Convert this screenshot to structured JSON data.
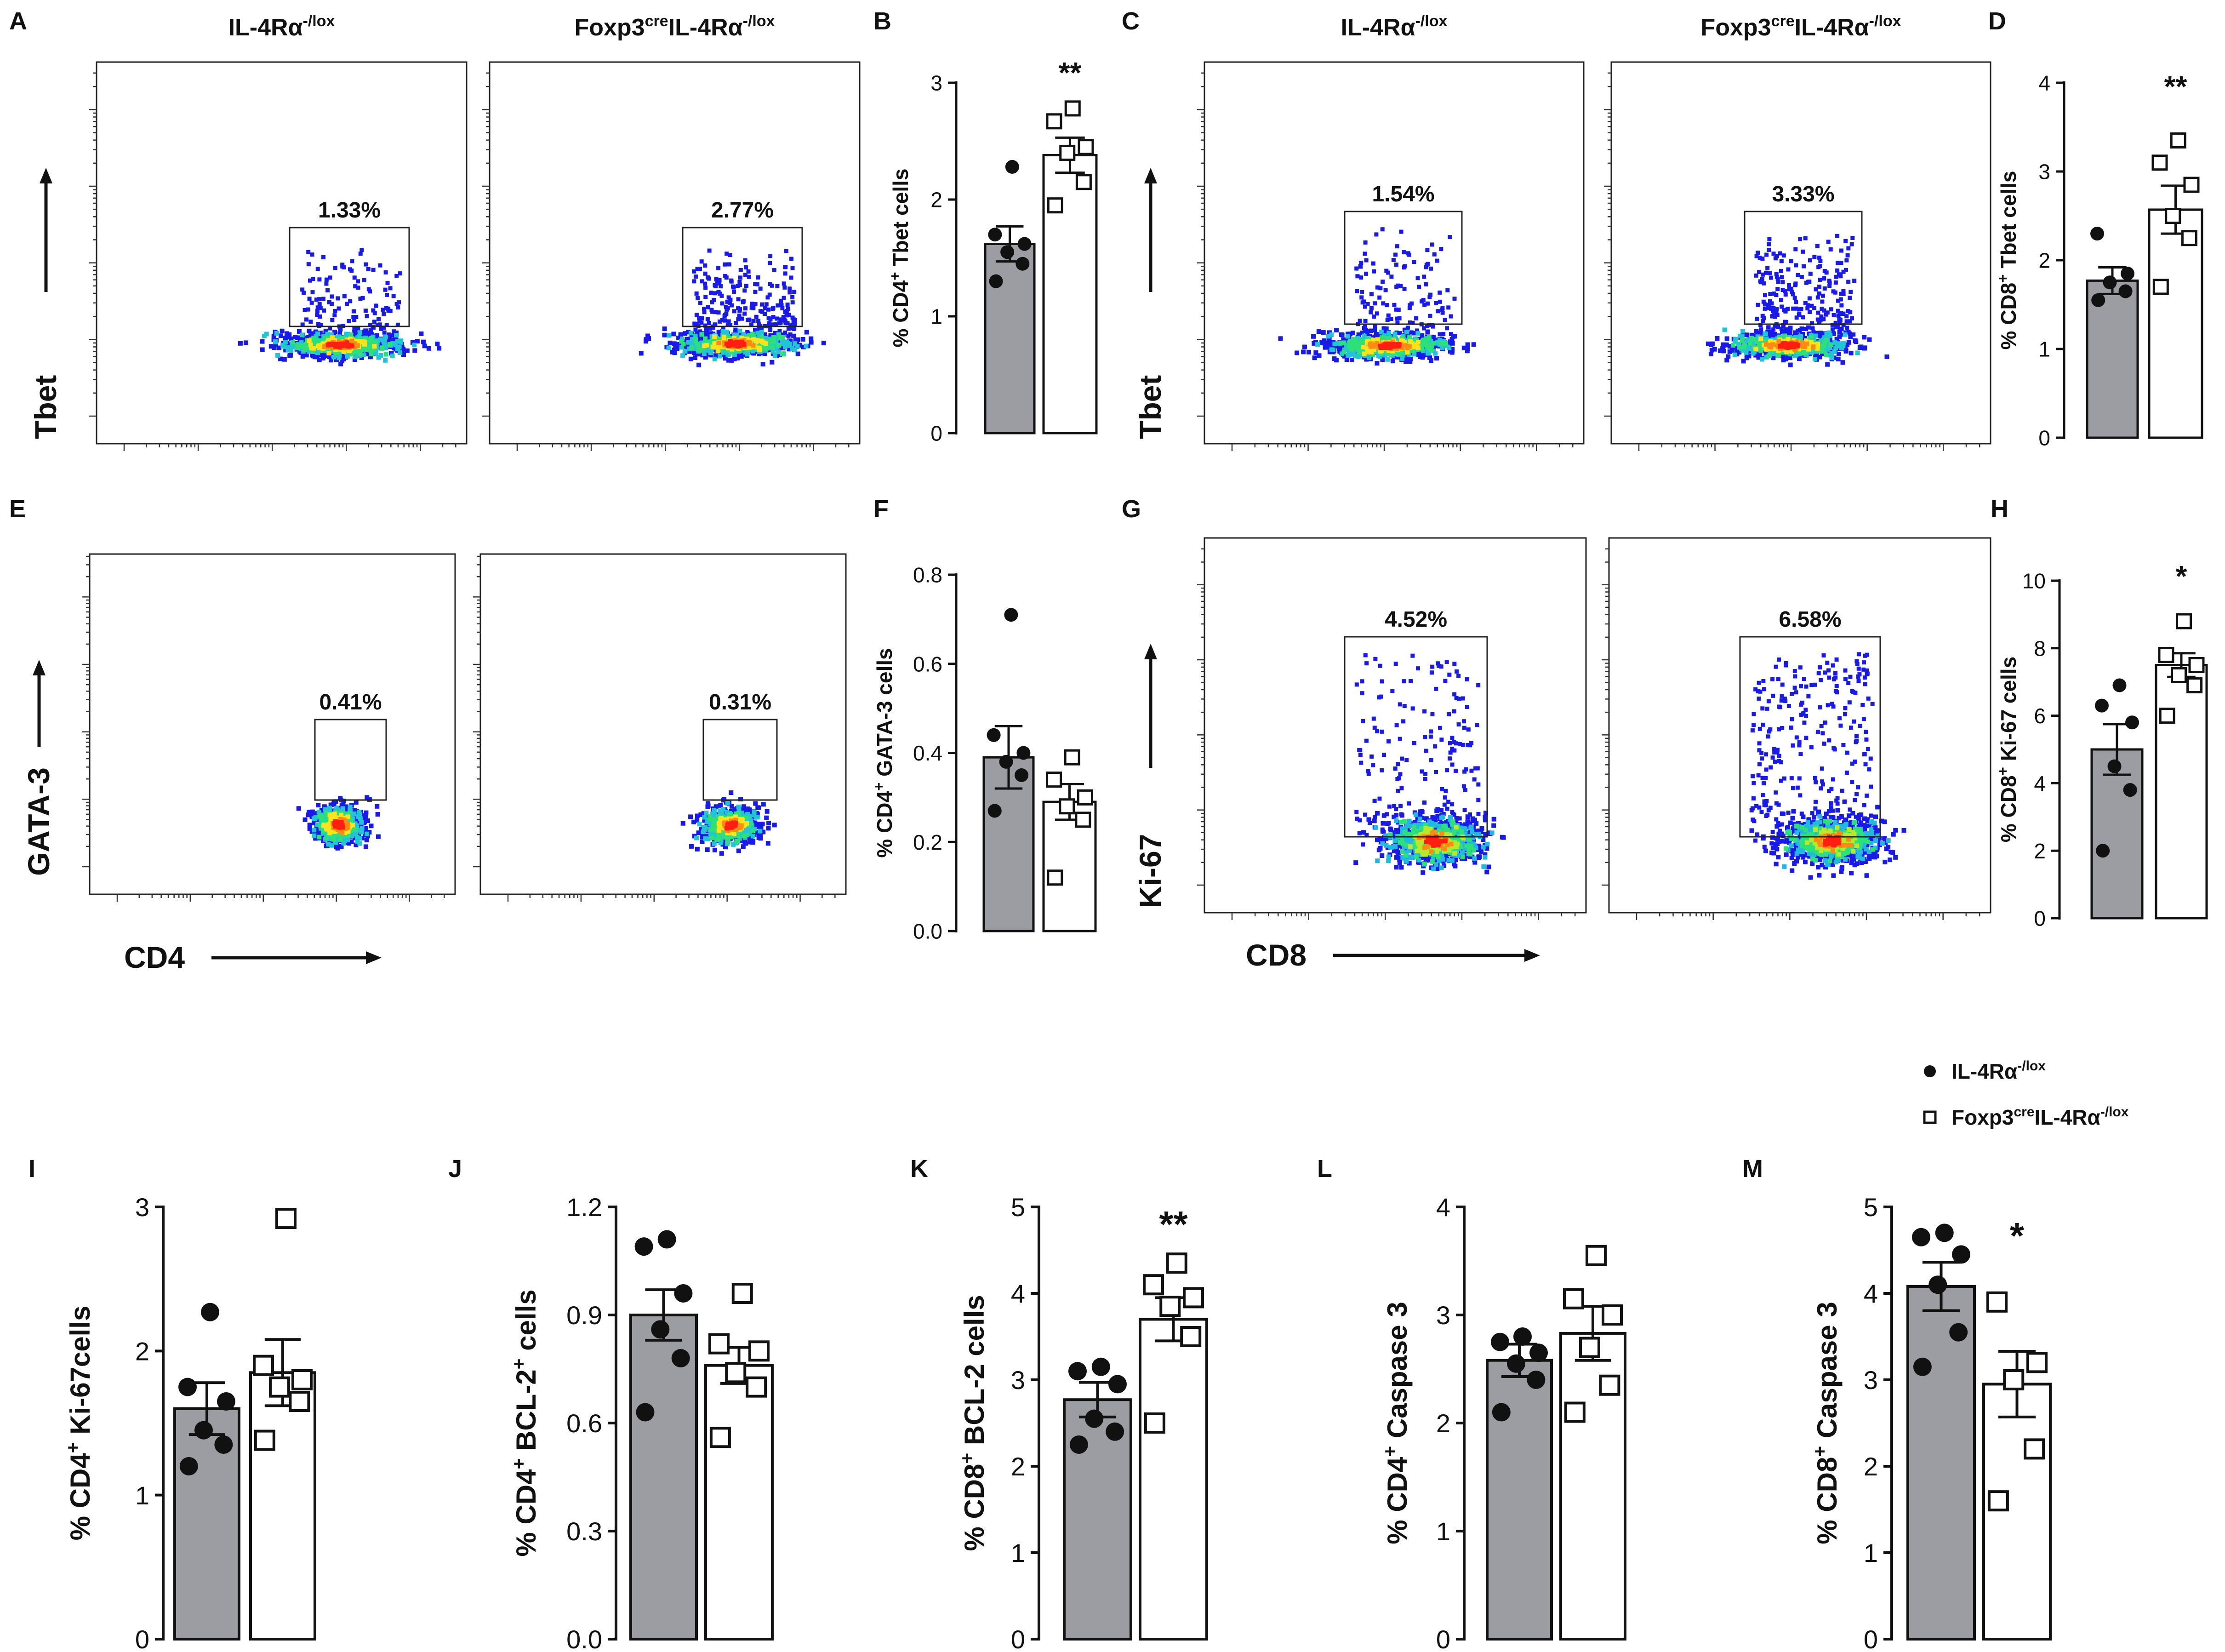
{
  "legend": {
    "wt_label": "IL-4Rα",
    "wt_sup": "-/lox",
    "ko_label_pre": "Foxp3",
    "ko_cre": "cre",
    "ko_label_post": "IL-4Rα",
    "ko_sup": "-/lox"
  },
  "flow_panels": [
    {
      "letter": "A",
      "y_axis": "Tbet",
      "x_axis": "",
      "titles": [
        {
          "pre": "",
          "sup1": "",
          "mid": "IL-4Rα",
          "sup2": "-/lox"
        },
        {
          "pre": "Foxp3",
          "sup1": "cre",
          "mid": "IL-4Rα",
          "sup2": "-/lox"
        }
      ],
      "gates": [
        "1.33%",
        "2.77%"
      ]
    },
    {
      "letter": "C",
      "y_axis": "Tbet",
      "x_axis": "",
      "titles": [
        {
          "pre": "",
          "sup1": "",
          "mid": "IL-4Rα",
          "sup2": "-/lox"
        },
        {
          "pre": "Foxp3",
          "sup1": "cre",
          "mid": "IL-4Rα",
          "sup2": "-/lox"
        }
      ],
      "gates": [
        "1.54%",
        "3.33%"
      ]
    },
    {
      "letter": "E",
      "y_axis": "GATA-3",
      "x_axis": "CD4",
      "titles": [],
      "gates": [
        "0.41%",
        "0.31%"
      ]
    },
    {
      "letter": "G",
      "y_axis": "Ki-67",
      "x_axis": "CD8",
      "titles": [],
      "gates": [
        "4.52%",
        "6.58%"
      ]
    }
  ],
  "chart_data": [
    {
      "panel": "B",
      "type": "bar",
      "ylabel_parts": [
        "% CD4",
        "+",
        " Tbet cells"
      ],
      "yticks": [
        "0",
        "1",
        "2",
        "3"
      ],
      "ylim": [
        0,
        3
      ],
      "significance": "**",
      "series": [
        {
          "name": "IL-4Rα-/lox",
          "mean": 1.62,
          "sem": 0.15,
          "points": [
            1.3,
            1.45,
            1.55,
            1.62,
            1.7,
            2.28
          ]
        },
        {
          "name": "Foxp3creIL-4Rα-/lox",
          "mean": 2.38,
          "sem": 0.15,
          "points": [
            1.95,
            2.15,
            2.4,
            2.45,
            2.67,
            2.78
          ]
        }
      ]
    },
    {
      "panel": "D",
      "type": "bar",
      "ylabel_parts": [
        "% CD8",
        "+",
        " Tbet cells"
      ],
      "yticks": [
        "0",
        "1",
        "2",
        "3",
        "4"
      ],
      "ylim": [
        0,
        4
      ],
      "significance": "**",
      "series": [
        {
          "name": "IL-4Rα-/lox",
          "mean": 1.77,
          "sem": 0.15,
          "points": [
            1.55,
            1.65,
            1.75,
            1.85,
            2.3
          ]
        },
        {
          "name": "Foxp3creIL-4Rα-/lox",
          "mean": 2.57,
          "sem": 0.27,
          "points": [
            1.7,
            2.25,
            2.5,
            2.85,
            3.1,
            3.35
          ]
        }
      ]
    },
    {
      "panel": "F",
      "type": "bar",
      "ylabel_parts": [
        "% CD4",
        "+",
        " GATA-3 cells"
      ],
      "yticks": [
        "0.0",
        "0.2",
        "0.4",
        "0.6",
        "0.8"
      ],
      "ylim": [
        0,
        0.8
      ],
      "significance": "",
      "series": [
        {
          "name": "IL-4Rα-/lox",
          "mean": 0.39,
          "sem": 0.07,
          "points": [
            0.27,
            0.35,
            0.38,
            0.4,
            0.44,
            0.71
          ]
        },
        {
          "name": "Foxp3creIL-4Rα-/lox",
          "mean": 0.29,
          "sem": 0.04,
          "points": [
            0.12,
            0.25,
            0.28,
            0.3,
            0.34,
            0.39
          ]
        }
      ]
    },
    {
      "panel": "H",
      "type": "bar",
      "ylabel_parts": [
        "% CD8",
        "+",
        " Ki-67 cells"
      ],
      "yticks": [
        "0",
        "2",
        "4",
        "6",
        "8",
        "10"
      ],
      "ylim": [
        0,
        10
      ],
      "significance": "*",
      "series": [
        {
          "name": "IL-4Rα-/lox",
          "mean": 5.0,
          "sem": 0.75,
          "points": [
            2.0,
            3.8,
            4.5,
            5.8,
            6.3,
            6.9
          ]
        },
        {
          "name": "Foxp3creIL-4Rα-/lox",
          "mean": 7.5,
          "sem": 0.35,
          "points": [
            6.0,
            6.9,
            7.2,
            7.5,
            7.8,
            8.8
          ]
        }
      ]
    },
    {
      "panel": "I",
      "type": "bar",
      "ylabel_parts": [
        "% CD4",
        "+",
        " Ki-67cells"
      ],
      "yticks": [
        "0",
        "1",
        "2",
        "3"
      ],
      "ylim": [
        0,
        3
      ],
      "significance": "",
      "series": [
        {
          "name": "IL-4Rα-/lox",
          "mean": 1.6,
          "sem": 0.18,
          "points": [
            1.2,
            1.35,
            1.45,
            1.65,
            1.75,
            2.27
          ]
        },
        {
          "name": "Foxp3creIL-4Rα-/lox",
          "mean": 1.85,
          "sem": 0.23,
          "points": [
            1.38,
            1.65,
            1.75,
            1.8,
            1.9,
            2.92
          ]
        }
      ]
    },
    {
      "panel": "J",
      "type": "bar",
      "ylabel_parts": [
        "% CD4",
        "+",
        " BCL-2",
        "+",
        " cells"
      ],
      "yticks": [
        "0.0",
        "0.3",
        "0.6",
        "0.9",
        "1.2"
      ],
      "ylim": [
        0,
        1.2
      ],
      "significance": "",
      "series": [
        {
          "name": "IL-4Rα-/lox",
          "mean": 0.9,
          "sem": 0.07,
          "points": [
            0.63,
            0.78,
            0.86,
            0.96,
            1.09,
            1.11
          ]
        },
        {
          "name": "Foxp3creIL-4Rα-/lox",
          "mean": 0.76,
          "sem": 0.05,
          "points": [
            0.56,
            0.7,
            0.74,
            0.8,
            0.82,
            0.96
          ]
        }
      ]
    },
    {
      "panel": "K",
      "type": "bar",
      "ylabel_parts": [
        "% CD8",
        "+",
        " BCL-2 cells"
      ],
      "yticks": [
        "0",
        "1",
        "2",
        "3",
        "4",
        "5"
      ],
      "ylim": [
        0,
        5
      ],
      "significance": "**",
      "series": [
        {
          "name": "IL-4Rα-/lox",
          "mean": 2.77,
          "sem": 0.2,
          "points": [
            2.25,
            2.4,
            2.55,
            2.95,
            3.1,
            3.15
          ]
        },
        {
          "name": "Foxp3creIL-4Rα-/lox",
          "mean": 3.7,
          "sem": 0.25,
          "points": [
            2.5,
            3.5,
            3.85,
            3.95,
            4.1,
            4.35
          ]
        }
      ]
    },
    {
      "panel": "L",
      "type": "bar",
      "ylabel_parts": [
        "% CD4",
        "+",
        " Caspase 3"
      ],
      "yticks": [
        "0",
        "1",
        "2",
        "3",
        "4"
      ],
      "ylim": [
        0,
        4
      ],
      "significance": "",
      "series": [
        {
          "name": "IL-4Rα-/lox",
          "mean": 2.58,
          "sem": 0.15,
          "points": [
            2.1,
            2.4,
            2.55,
            2.65,
            2.75,
            2.8
          ]
        },
        {
          "name": "Foxp3creIL-4Rα-/lox",
          "mean": 2.83,
          "sem": 0.25,
          "points": [
            2.1,
            2.35,
            2.7,
            3.0,
            3.15,
            3.55
          ]
        }
      ]
    },
    {
      "panel": "M",
      "type": "bar",
      "ylabel_parts": [
        "% CD8",
        "+",
        " Caspase 3"
      ],
      "yticks": [
        "0",
        "1",
        "2",
        "3",
        "4",
        "5"
      ],
      "ylim": [
        0,
        5
      ],
      "significance": "*",
      "series": [
        {
          "name": "IL-4Rα-/lox",
          "mean": 4.08,
          "sem": 0.28,
          "points": [
            3.15,
            3.55,
            4.1,
            4.45,
            4.65,
            4.7
          ]
        },
        {
          "name": "Foxp3creIL-4Rα-/lox",
          "mean": 2.95,
          "sem": 0.38,
          "points": [
            1.6,
            2.2,
            3.0,
            3.2,
            3.9
          ]
        }
      ]
    }
  ]
}
